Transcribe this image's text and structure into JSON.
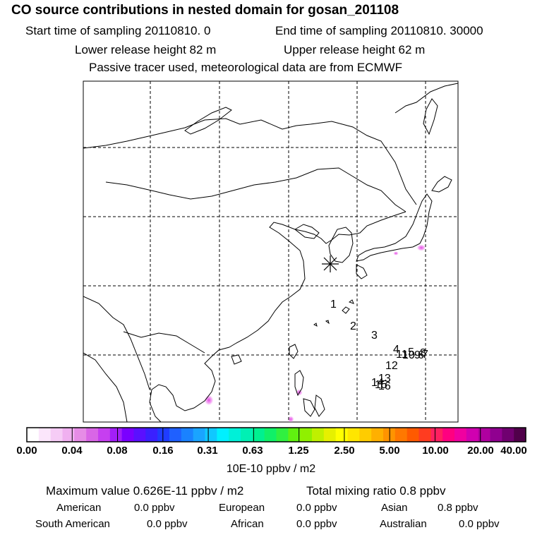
{
  "header": {
    "title": "CO  source contributions in nested domain for gosan_201108",
    "start": "Start time of sampling 20110810.     0",
    "end": "End time of sampling 20110810. 30000",
    "lower": "Lower release height   82 m",
    "upper": "Upper release height   62 m",
    "passive": "Passive tracer used, meteorological data are from ECMWF"
  },
  "chart_data": {
    "type": "heatmap",
    "colorbar": {
      "ticks": [
        "0.00",
        "0.04",
        "0.08",
        "0.16",
        "0.31",
        "0.63",
        "1.25",
        "2.50",
        "5.00",
        "10.00",
        "20.00",
        "40.00"
      ],
      "unit": "10E-10 ppbv / m2",
      "colors": [
        "#ffffff",
        "#fbe6fb",
        "#f6ccf6",
        "#f0b0f0",
        "#e68ce6",
        "#d966e6",
        "#c63ff0",
        "#a21ff7",
        "#7a00ff",
        "#5a10ff",
        "#3a20ff",
        "#1f3cff",
        "#1f60ff",
        "#1a82ff",
        "#1aa4ff",
        "#10c8ff",
        "#00f0ff",
        "#00f0d8",
        "#00f0b4",
        "#00f090",
        "#10f068",
        "#30f040",
        "#60f010",
        "#90f000",
        "#bff000",
        "#e6f000",
        "#ffff00",
        "#ffe600",
        "#ffcc00",
        "#ffb000",
        "#ff9400",
        "#ff7800",
        "#ff5a00",
        "#ff3c20",
        "#ff2060",
        "#ff0080",
        "#f000a0",
        "#d000b0",
        "#b000a0",
        "#900090",
        "#700070",
        "#50004a"
      ]
    },
    "receptor_marker": "asterisk",
    "trajectory_labels": [
      "1",
      "2",
      "3",
      "4",
      "5",
      "6",
      "7",
      "8",
      "9",
      "10",
      "11",
      "12",
      "13",
      "14",
      "15",
      "16"
    ],
    "hotspots_legend_min": "0.00",
    "stats": {
      "maximum": "Maximum value  0.626E-11 ppbv / m2",
      "total": "Total mixing ratio        0.8 ppbv"
    },
    "regions": [
      {
        "name": "American",
        "value": "0.0 ppbv"
      },
      {
        "name": "European",
        "value": "0.0 ppbv"
      },
      {
        "name": "Asian",
        "value": "0.8 ppbv"
      },
      {
        "name": "South American",
        "value": "0.0 ppbv"
      },
      {
        "name": "African",
        "value": "0.0 ppbv"
      },
      {
        "name": "Australian",
        "value": "0.0 ppbv"
      }
    ]
  }
}
